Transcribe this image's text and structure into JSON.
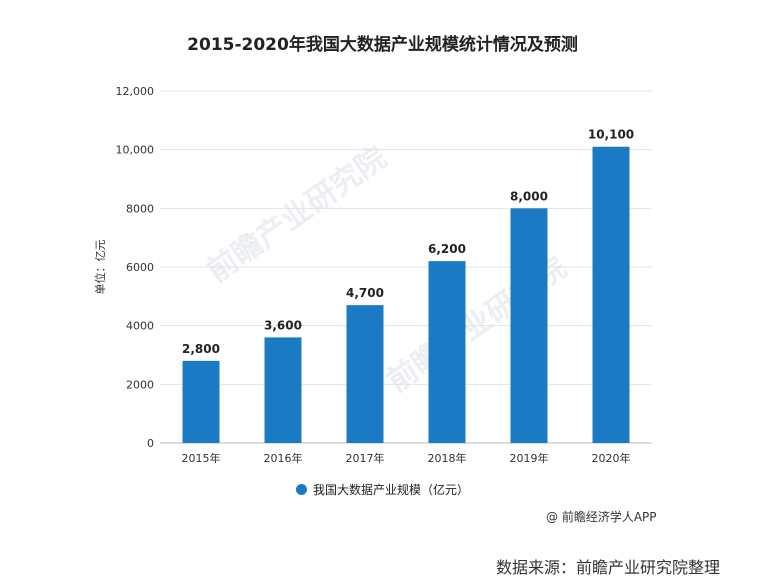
{
  "chart_data": {
    "type": "bar",
    "title": "2015-2020年我国大数据产业规模统计情况及预测",
    "ylabel": "单位：亿元",
    "xlabel": "",
    "categories": [
      "2015年",
      "2016年",
      "2017年",
      "2018年",
      "2019年",
      "2020年"
    ],
    "series": [
      {
        "name": "我国大数据产业规模（亿元）",
        "values": [
          2800,
          3600,
          4700,
          6200,
          8000,
          10100
        ]
      }
    ],
    "data_labels": [
      "2,800",
      "3,600",
      "4,700",
      "6,200",
      "8,000",
      "10,100"
    ],
    "ylim": [
      0,
      12000
    ],
    "yticks": [
      0,
      2000,
      4000,
      6000,
      8000,
      10000,
      12000
    ],
    "ytick_labels": [
      "0",
      "2000",
      "4000",
      "6000",
      "8000",
      "10,000",
      "12,000"
    ],
    "grid": true,
    "legend_position": "bottom",
    "bar_color": "#1a7bc4"
  },
  "credit": "@ 前瞻经济学人APP",
  "source": "数据来源：前瞻产业研究院整理",
  "watermark": "前瞻产业研究院"
}
